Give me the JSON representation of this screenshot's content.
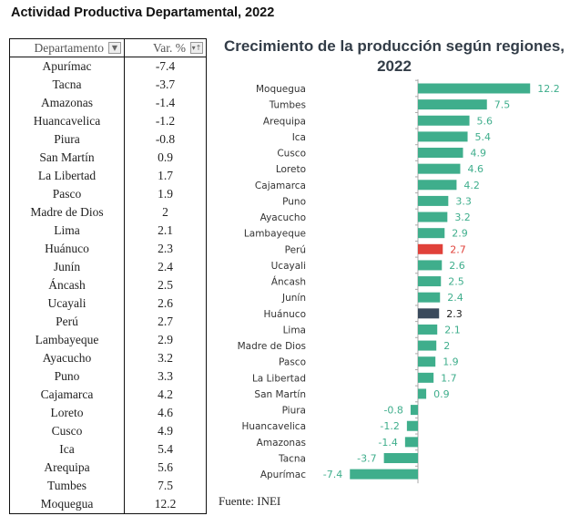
{
  "page_title": "Actividad Productiva Departamental, 2022",
  "table": {
    "headers": [
      "Departamento",
      "Var. %"
    ],
    "filter_icons": [
      "▼",
      "▾↑"
    ],
    "rows": [
      [
        "Apurímac",
        "-7.4"
      ],
      [
        "Tacna",
        "-3.7"
      ],
      [
        "Amazonas",
        "-1.4"
      ],
      [
        "Huancavelica",
        "-1.2"
      ],
      [
        "Piura",
        "-0.8"
      ],
      [
        "San Martín",
        "0.9"
      ],
      [
        "La Libertad",
        "1.7"
      ],
      [
        "Pasco",
        "1.9"
      ],
      [
        "Madre de Dios",
        "2"
      ],
      [
        "Lima",
        "2.1"
      ],
      [
        "Huánuco",
        "2.3"
      ],
      [
        "Junín",
        "2.4"
      ],
      [
        "Áncash",
        "2.5"
      ],
      [
        "Ucayali",
        "2.6"
      ],
      [
        "Perú",
        "2.7"
      ],
      [
        "Lambayeque",
        "2.9"
      ],
      [
        "Ayacucho",
        "3.2"
      ],
      [
        "Puno",
        "3.3"
      ],
      [
        "Cajamarca",
        "4.2"
      ],
      [
        "Loreto",
        "4.6"
      ],
      [
        "Cusco",
        "4.9"
      ],
      [
        "Ica",
        "5.4"
      ],
      [
        "Arequipa",
        "5.6"
      ],
      [
        "Tumbes",
        "7.5"
      ],
      [
        "Moquegua",
        "12.2"
      ]
    ]
  },
  "source": "Fuente: INEI",
  "colors": {
    "default": "#3fae8c",
    "peru": "#e0413a",
    "huanuco": "#3a4a5c",
    "axis": "#aaaaaa"
  },
  "chart_data": {
    "type": "bar",
    "orientation": "horizontal",
    "title": "Crecimiento de la producción según regiones, 2022",
    "xlabel": "",
    "ylabel": "",
    "xlim": [
      -7.4,
      12.2
    ],
    "grid": false,
    "categories": [
      "Moquegua",
      "Tumbes",
      "Arequipa",
      "Ica",
      "Cusco",
      "Loreto",
      "Cajamarca",
      "Puno",
      "Ayacucho",
      "Lambayeque",
      "Perú",
      "Ucayali",
      "Áncash",
      "Junín",
      "Huánuco",
      "Lima",
      "Madre de Dios",
      "Pasco",
      "La Libertad",
      "San Martín",
      "Piura",
      "Huancavelica",
      "Amazonas",
      "Tacna",
      "Apurímac"
    ],
    "values": [
      12.2,
      7.5,
      5.6,
      5.4,
      4.9,
      4.6,
      4.2,
      3.3,
      3.2,
      2.9,
      2.7,
      2.6,
      2.5,
      2.4,
      2.3,
      2.1,
      2,
      1.9,
      1.7,
      0.9,
      -0.8,
      -1.2,
      -1.4,
      -3.7,
      -7.4
    ],
    "labels": [
      "12.2",
      "7.5",
      "5.6",
      "5.4",
      "4.9",
      "4.6",
      "4.2",
      "3.3",
      "3.2",
      "2.9",
      "2.7",
      "2.6",
      "2.5",
      "2.4",
      "2.3",
      "2.1",
      "2",
      "1.9",
      "1.7",
      "0.9",
      "-0.8",
      "-1.2",
      "-1.4",
      "-3.7",
      "-7.4"
    ],
    "highlight": {
      "Perú": "peru",
      "Huánuco": "huanuco"
    }
  }
}
